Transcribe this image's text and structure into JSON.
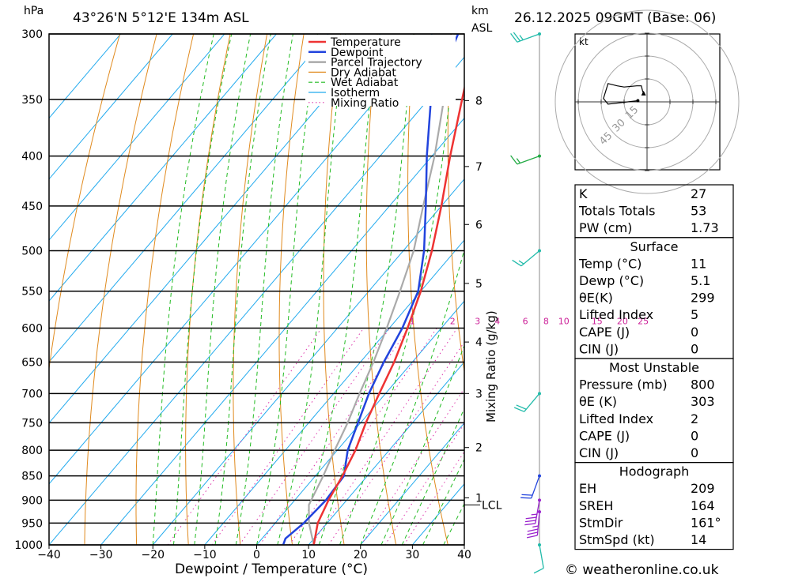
{
  "header": {
    "location": "43°26'N  5°12'E  134m  ASL",
    "datetime": "26.12.2025  09GMT  (Base: 06)",
    "pressure_unit": "hPa",
    "height_unit_top": "km",
    "height_unit_bottom": "ASL",
    "credit": "© weatheronline.co.uk"
  },
  "chart_data": {
    "type": "line",
    "subtype": "skew-T log-P",
    "xlabel": "Dewpoint / Temperature (°C)",
    "ylabel": "hPa",
    "xlim": [
      -40,
      40
    ],
    "ylim": [
      1000,
      300
    ],
    "y_scale": "log",
    "x_ticks": [
      -40,
      -30,
      -20,
      -10,
      0,
      10,
      20,
      30,
      40
    ],
    "pressure_levels": [
      300,
      350,
      400,
      450,
      500,
      550,
      600,
      650,
      700,
      750,
      800,
      850,
      900,
      950,
      1000
    ],
    "km_ticks": [
      {
        "label": "8",
        "p": 351
      },
      {
        "label": "7",
        "p": 410
      },
      {
        "label": "6",
        "p": 470
      },
      {
        "label": "5",
        "p": 540
      },
      {
        "label": "4",
        "p": 620
      },
      {
        "label": "3",
        "p": 700
      },
      {
        "label": "2",
        "p": 795
      },
      {
        "label": "1",
        "p": 895
      }
    ],
    "lcl": {
      "label": "LCL",
      "p": 910
    },
    "mixing_ratio_label": "Mixing Ratio (g/kg)",
    "mixing_ratio_labels": [
      "1",
      "2",
      "3",
      "4",
      "6",
      "8",
      "10",
      "15",
      "20",
      "25"
    ],
    "mixing_ratio_label_temps": [
      -5.6,
      2.2,
      7.0,
      10.8,
      16.2,
      20.2,
      23.6,
      30.0,
      34.9,
      38.9
    ],
    "legend": [
      {
        "name": "Temperature",
        "color": "#ee3333",
        "dash": "solid"
      },
      {
        "name": "Dewpoint",
        "color": "#2244dd",
        "dash": "solid"
      },
      {
        "name": "Parcel Trajectory",
        "color": "#aaaaaa",
        "dash": "solid"
      },
      {
        "name": "Dry Adiabat",
        "color": "#e08a1e",
        "dash": "solid"
      },
      {
        "name": "Wet Adiabat",
        "color": "#22bb22",
        "dash": "dashed"
      },
      {
        "name": "Isotherm",
        "color": "#22aaee",
        "dash": "solid"
      },
      {
        "name": "Mixing Ratio",
        "color": "#dd33aa",
        "dash": "dotted"
      }
    ],
    "series": [
      {
        "name": "Temperature",
        "points": [
          [
            1000,
            11
          ],
          [
            950,
            8.2
          ],
          [
            900,
            6.5
          ],
          [
            850,
            5.2
          ],
          [
            800,
            3.5
          ],
          [
            750,
            1
          ],
          [
            700,
            -1.2
          ],
          [
            650,
            -3.5
          ],
          [
            600,
            -6.5
          ],
          [
            550,
            -10
          ],
          [
            500,
            -14.5
          ],
          [
            450,
            -20
          ],
          [
            400,
            -26.5
          ],
          [
            350,
            -33.5
          ],
          [
            300,
            -41.5
          ]
        ]
      },
      {
        "name": "Dewpoint",
        "points": [
          [
            1000,
            5.1
          ],
          [
            985,
            4.5
          ],
          [
            950,
            5.5
          ],
          [
            900,
            6
          ],
          [
            850,
            5.5
          ],
          [
            800,
            2
          ],
          [
            750,
            -0.5
          ],
          [
            700,
            -3.2
          ],
          [
            650,
            -5.5
          ],
          [
            600,
            -7.5
          ],
          [
            550,
            -10.5
          ],
          [
            500,
            -16
          ],
          [
            450,
            -23
          ],
          [
            400,
            -31
          ],
          [
            350,
            -39.5
          ],
          [
            300,
            -45
          ]
        ]
      },
      {
        "name": "Parcel Trajectory",
        "points": [
          [
            1000,
            11
          ],
          [
            950,
            6.5
          ],
          [
            910,
            3.5
          ],
          [
            850,
            1.5
          ],
          [
            800,
            -0.5
          ],
          [
            750,
            -2.5
          ],
          [
            700,
            -5
          ],
          [
            650,
            -7.5
          ],
          [
            600,
            -10.5
          ],
          [
            550,
            -14
          ],
          [
            500,
            -18
          ],
          [
            450,
            -23.5
          ],
          [
            400,
            -29.5
          ],
          [
            350,
            -37
          ],
          [
            300,
            -46
          ]
        ]
      }
    ]
  },
  "hodograph": {
    "unit": "kt",
    "ring_labels": [
      "15",
      "30",
      "45"
    ],
    "trace_kt": [
      [
        -4,
        0.5
      ],
      [
        -17,
        -1
      ],
      [
        -19,
        1.5
      ],
      [
        -17,
        8
      ],
      [
        -13,
        7
      ],
      [
        -10,
        6.5
      ],
      [
        -4.5,
        7
      ],
      [
        -2.5,
        7
      ],
      [
        -2,
        5
      ],
      [
        -1.5,
        3.5
      ]
    ]
  },
  "stats": {
    "general": [
      {
        "label": "K",
        "value": "27"
      },
      {
        "label": "Totals Totals",
        "value": "53"
      },
      {
        "label": "PW (cm)",
        "value": "1.73"
      }
    ],
    "surface_title": "Surface",
    "surface": [
      {
        "label": "Temp (°C)",
        "value": "11"
      },
      {
        "label": "Dewp (°C)",
        "value": "5.1"
      },
      {
        "label": "θE(K)",
        "value": "299"
      },
      {
        "label": "Lifted Index",
        "value": "5"
      },
      {
        "label": "CAPE (J)",
        "value": "0"
      },
      {
        "label": "CIN (J)",
        "value": "0"
      }
    ],
    "unstable_title": "Most Unstable",
    "unstable": [
      {
        "label": "Pressure (mb)",
        "value": "800"
      },
      {
        "label": "θE (K)",
        "value": "303"
      },
      {
        "label": "Lifted Index",
        "value": "2"
      },
      {
        "label": "CAPE (J)",
        "value": "0"
      },
      {
        "label": "CIN (J)",
        "value": "0"
      }
    ],
    "hodo_title": "Hodograph",
    "hodo": [
      {
        "label": "EH",
        "value": "209"
      },
      {
        "label": "SREH",
        "value": "164"
      },
      {
        "label": "StmDir",
        "value": "161°"
      },
      {
        "label": "StmSpd (kt)",
        "value": "14"
      }
    ]
  },
  "wind_barbs": [
    {
      "p": 300,
      "dir": 250,
      "kt": 25,
      "color": "#22bbaa"
    },
    {
      "p": 400,
      "dir": 250,
      "kt": 15,
      "color": "#22aa44"
    },
    {
      "p": 500,
      "dir": 230,
      "kt": 15,
      "color": "#22bbaa"
    },
    {
      "p": 700,
      "dir": 220,
      "kt": 20,
      "color": "#22bbaa"
    },
    {
      "p": 850,
      "dir": 200,
      "kt": 20,
      "color": "#2244dd"
    },
    {
      "p": 900,
      "dir": 190,
      "kt": 35,
      "color": "#9922cc"
    },
    {
      "p": 925,
      "dir": 185,
      "kt": 35,
      "color": "#9922cc"
    },
    {
      "p": 1000,
      "dir": 170,
      "kt": 10,
      "color": "#22bbaa"
    }
  ]
}
